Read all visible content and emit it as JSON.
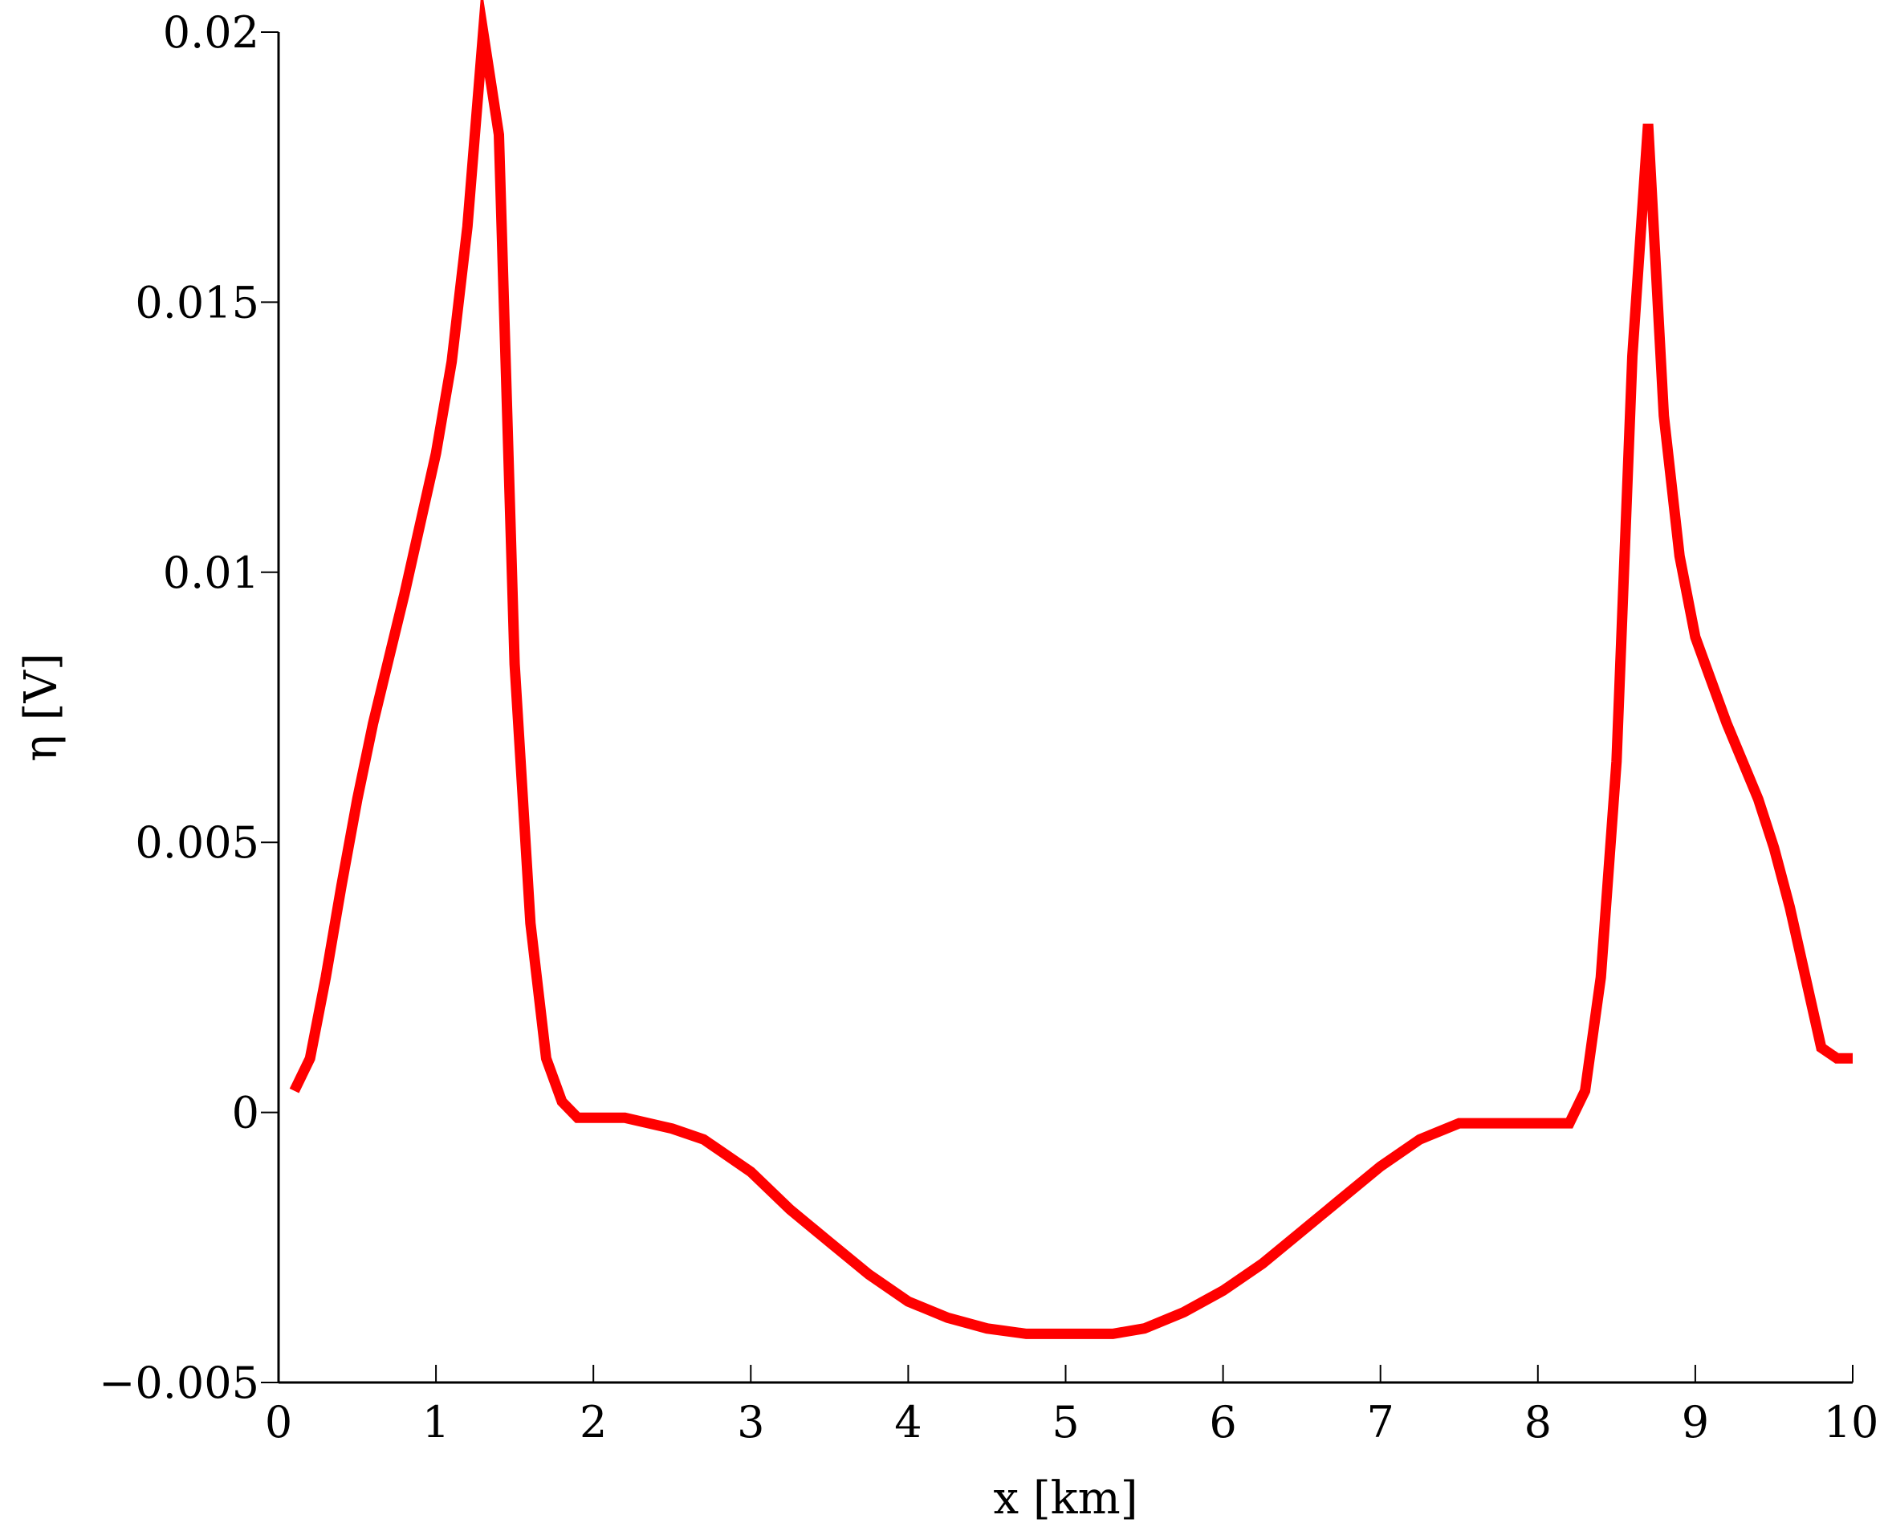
{
  "chart_data": {
    "type": "line",
    "title": "",
    "xlabel": "x [km]",
    "ylabel": "η [V]",
    "xlim": [
      0,
      10
    ],
    "ylim": [
      -0.005,
      0.02
    ],
    "x_ticks": [
      0,
      1,
      2,
      3,
      4,
      5,
      6,
      7,
      8,
      9,
      10
    ],
    "x_tick_labels": [
      "0",
      "1",
      "2",
      "3",
      "4",
      "5",
      "6",
      "7",
      "8",
      "9",
      "10"
    ],
    "y_ticks": [
      -0.005,
      0,
      0.005,
      0.01,
      0.015,
      0.02
    ],
    "y_tick_labels": [
      "−0.005",
      "0",
      "0.005",
      "0.01",
      "0.015",
      "0.02"
    ],
    "grid": false,
    "legend": "none",
    "series": [
      {
        "color": "#ff0000",
        "x": [
          0.1,
          0.2,
          0.3,
          0.4,
          0.5,
          0.6,
          0.7,
          0.8,
          0.9,
          1.0,
          1.1,
          1.2,
          1.3,
          1.4,
          1.5,
          1.6,
          1.7,
          1.8,
          1.9,
          2.0,
          2.2,
          2.5,
          2.7,
          3.0,
          3.25,
          3.5,
          3.75,
          4.0,
          4.25,
          4.5,
          4.75,
          5.0,
          5.15,
          5.3,
          5.5,
          5.75,
          6.0,
          6.25,
          6.5,
          6.75,
          7.0,
          7.25,
          7.5,
          7.75,
          8.0,
          8.2,
          8.3,
          8.4,
          8.5,
          8.6,
          8.7,
          8.8,
          8.9,
          9.0,
          9.1,
          9.2,
          9.3,
          9.4,
          9.5,
          9.6,
          9.7,
          9.8,
          9.9,
          10.0
        ],
        "y": [
          0.0004,
          0.001,
          0.0025,
          0.0042,
          0.0058,
          0.0072,
          0.0084,
          0.0096,
          0.0109,
          0.0122,
          0.0139,
          0.0164,
          0.02,
          0.0181,
          0.0083,
          0.0035,
          0.001,
          0.0002,
          -0.0001,
          -0.0001,
          -0.0001,
          -0.0003,
          -0.0005,
          -0.0011,
          -0.0018,
          -0.0024,
          -0.003,
          -0.0035,
          -0.0038,
          -0.004,
          -0.0041,
          -0.0041,
          -0.0041,
          -0.0041,
          -0.004,
          -0.0037,
          -0.0033,
          -0.0028,
          -0.0022,
          -0.0016,
          -0.001,
          -0.0005,
          -0.0002,
          -0.0002,
          -0.0002,
          -0.0002,
          0.0004,
          0.0025,
          0.0065,
          0.014,
          0.0183,
          0.0129,
          0.0103,
          0.0088,
          0.008,
          0.0072,
          0.0065,
          0.0058,
          0.0049,
          0.0038,
          0.0025,
          0.0012,
          0.001,
          0.001
        ]
      }
    ]
  }
}
